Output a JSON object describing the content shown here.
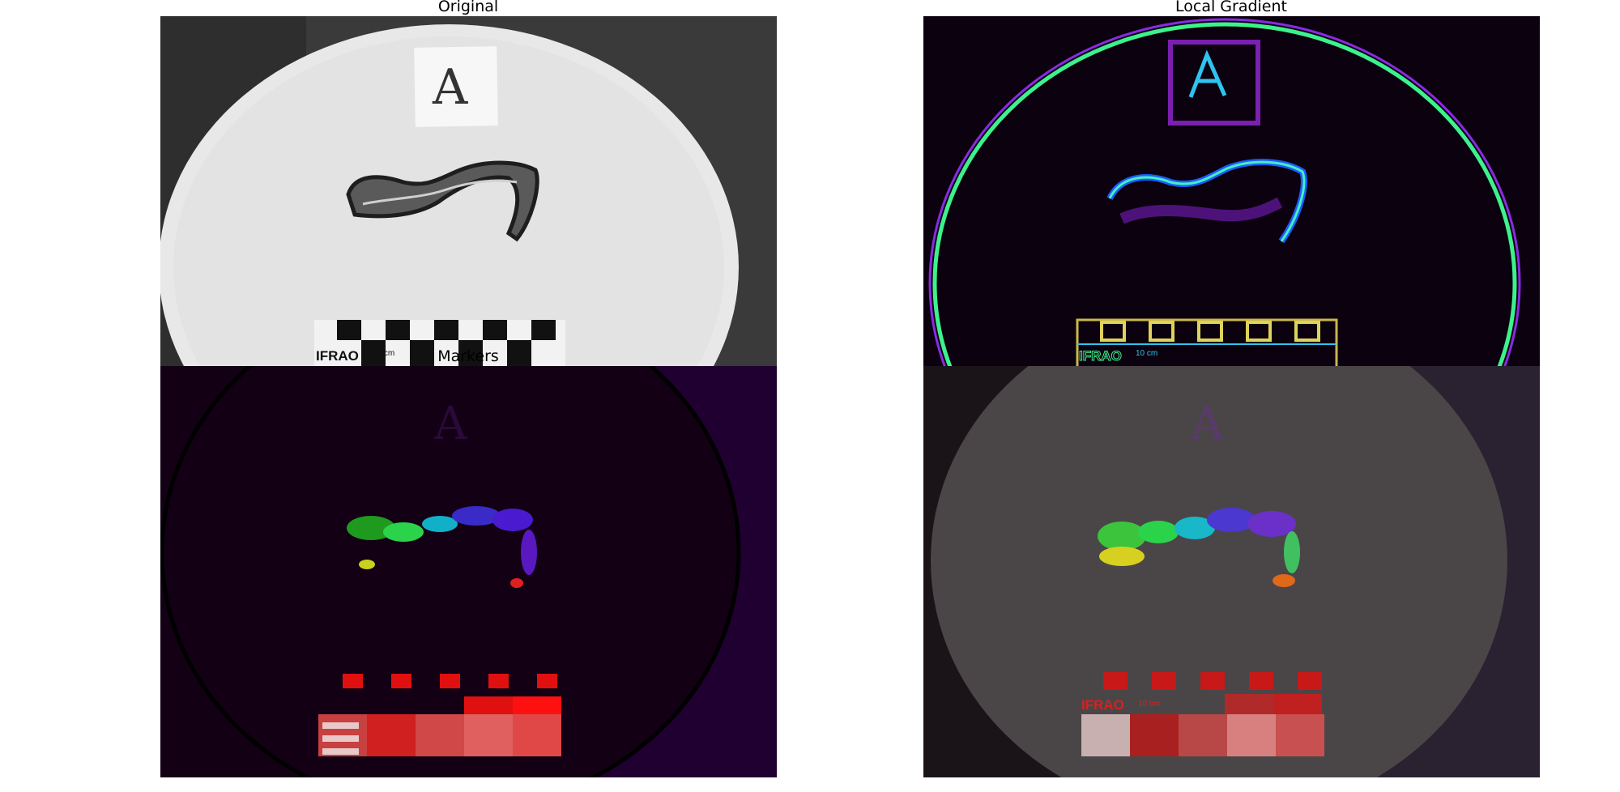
{
  "panels": {
    "original": {
      "title": "Original",
      "card_letter": "A",
      "scale_brand": "IFRAO",
      "scale_unit": "10 cm"
    },
    "gradient": {
      "title": "Local Gradient",
      "scale_brand": "IFRAO",
      "scale_unit": "10 cm"
    },
    "markers": {
      "title": "Markers",
      "card_letter": "A"
    },
    "segmented": {
      "title": "",
      "scale_brand": "IFRAO",
      "scale_unit": "10 cm",
      "card_letter": "A"
    }
  },
  "colors": {
    "background": "#ffffff",
    "markers_bg": "#130014",
    "gradient_bg": "#0c020f",
    "segmented_bg": "#3a3638"
  }
}
